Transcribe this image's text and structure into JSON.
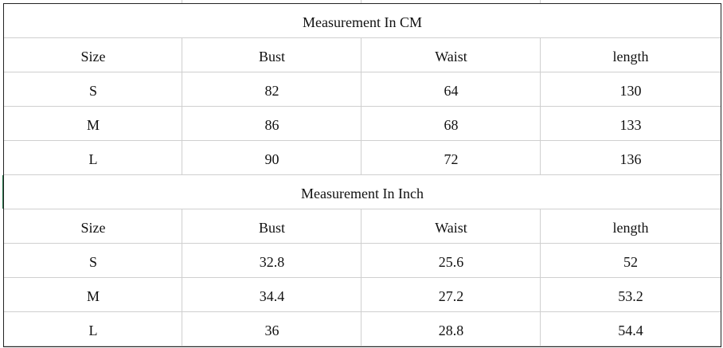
{
  "tables": [
    {
      "title": "Measurement In CM",
      "header": [
        "Size",
        "Bust",
        "Waist",
        "length"
      ],
      "rows": [
        [
          "S",
          "82",
          "64",
          "130"
        ],
        [
          "M",
          "86",
          "68",
          "133"
        ],
        [
          "L",
          "90",
          "72",
          "136"
        ]
      ]
    },
    {
      "title": "Measurement In Inch",
      "header": [
        "Size",
        "Bust",
        "Waist",
        "length"
      ],
      "rows": [
        [
          "S",
          "32.8",
          "25.6",
          "52"
        ],
        [
          "M",
          "34.4",
          "27.2",
          "53.2"
        ],
        [
          "L",
          "36",
          "28.8",
          "54.4"
        ]
      ]
    }
  ]
}
